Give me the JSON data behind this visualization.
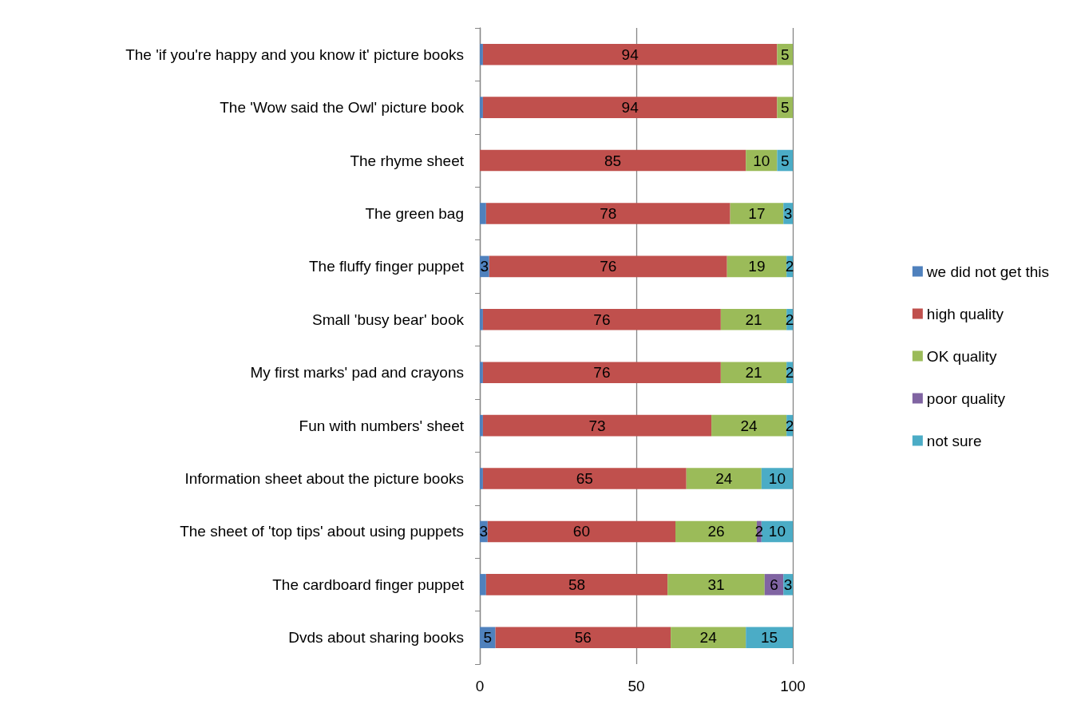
{
  "chart_data": {
    "type": "bar",
    "orientation": "horizontal",
    "stacked": true,
    "categories": [
      "The 'if you're happy and you know it' picture books",
      "The 'Wow said the Owl' picture book",
      "The rhyme sheet",
      "The green bag",
      "The fluffy finger puppet",
      "Small 'busy bear' book",
      "My first marks' pad and crayons",
      "Fun with numbers' sheet",
      "Information sheet about the picture books",
      "The sheet of 'top tips' about using puppets",
      "The cardboard finger puppet",
      "Dvds about sharing books"
    ],
    "series": [
      {
        "name": "we did not get this",
        "color": "#4f81bd",
        "values": [
          1,
          1,
          0,
          2,
          3,
          1,
          1,
          1,
          1,
          2.5,
          2,
          5
        ],
        "value_labels": [
          null,
          null,
          null,
          null,
          "3",
          null,
          null,
          null,
          null,
          "3",
          null,
          "5"
        ]
      },
      {
        "name": "high quality",
        "color": "#c0504d",
        "values": [
          94,
          94,
          85,
          78,
          76,
          76,
          76,
          73,
          65,
          60,
          58,
          56
        ],
        "value_labels": [
          "94",
          "94",
          "85",
          "78",
          "76",
          "76",
          "76",
          "73",
          "65",
          "60",
          "58",
          "56"
        ]
      },
      {
        "name": "OK quality",
        "color": "#9bbb59",
        "values": [
          5,
          5,
          10,
          17,
          19,
          21,
          21,
          24,
          24,
          26,
          31,
          24
        ],
        "value_labels": [
          "5",
          "5",
          "10",
          "17",
          "19",
          "21",
          "21",
          "24",
          "24",
          "26",
          "31",
          "24"
        ]
      },
      {
        "name": "poor quality",
        "color": "#8064a2",
        "values": [
          0,
          0,
          0,
          0,
          0,
          0,
          0,
          0,
          0,
          1.5,
          6,
          0
        ],
        "value_labels": [
          null,
          null,
          null,
          null,
          null,
          null,
          null,
          null,
          null,
          "2",
          "6",
          null
        ]
      },
      {
        "name": "not sure",
        "color": "#4bacc6",
        "values": [
          0,
          0,
          5,
          3,
          2,
          2,
          2,
          2,
          10,
          10,
          3,
          15
        ],
        "value_labels": [
          null,
          null,
          "5",
          "3",
          "2",
          "2",
          "2",
          "2",
          "10",
          "10",
          "3",
          "15"
        ]
      }
    ],
    "xlim": [
      0,
      100
    ],
    "xticks": [
      0,
      50,
      100
    ],
    "grid": "x",
    "legend": "right"
  }
}
